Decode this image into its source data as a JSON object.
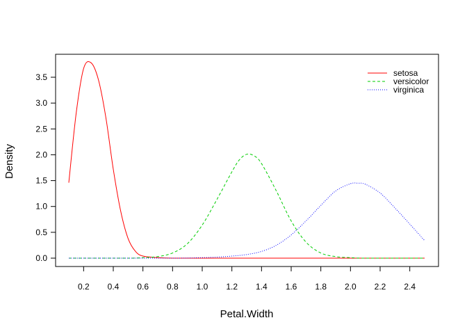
{
  "chart_data": {
    "type": "line",
    "title": "",
    "xlabel": "Petal.Width",
    "ylabel": "Density",
    "xlim": [
      0.1,
      2.5
    ],
    "ylim": [
      0,
      3.8
    ],
    "xticks": [
      "0.2",
      "0.4",
      "0.6",
      "0.8",
      "1.0",
      "1.2",
      "1.4",
      "1.6",
      "1.8",
      "2.0",
      "2.2",
      "2.4"
    ],
    "yticks": [
      "0.0",
      "0.5",
      "1.0",
      "1.5",
      "2.0",
      "2.5",
      "3.0",
      "3.5"
    ],
    "grid": false,
    "legend_position": "top-right",
    "series": [
      {
        "name": "setosa",
        "color": "#ff0000",
        "dash": "solid",
        "x": [
          0.1,
          0.15,
          0.2,
          0.25,
          0.3,
          0.35,
          0.4,
          0.45,
          0.5,
          0.55,
          0.6,
          0.7,
          0.8,
          1.0,
          1.5,
          2.0,
          2.5
        ],
        "y": [
          1.46,
          2.81,
          3.67,
          3.78,
          3.45,
          2.72,
          1.72,
          0.91,
          0.38,
          0.13,
          0.04,
          0.01,
          0.0,
          0.0,
          0.0,
          0.0,
          0.0
        ]
      },
      {
        "name": "versicolor",
        "color": "#00cd00",
        "dash": "dashed",
        "x": [
          0.1,
          0.5,
          0.6,
          0.7,
          0.8,
          0.9,
          1.0,
          1.1,
          1.2,
          1.25,
          1.3,
          1.35,
          1.4,
          1.5,
          1.6,
          1.7,
          1.8,
          1.9,
          2.0,
          2.1,
          2.5
        ],
        "y": [
          0.0,
          0.0,
          0.01,
          0.03,
          0.1,
          0.28,
          0.64,
          1.14,
          1.67,
          1.9,
          2.01,
          1.98,
          1.83,
          1.3,
          0.72,
          0.31,
          0.1,
          0.03,
          0.01,
          0.0,
          0.0
        ]
      },
      {
        "name": "virginica",
        "color": "#0000ff",
        "dash": "dotted",
        "x": [
          0.1,
          0.8,
          1.0,
          1.1,
          1.2,
          1.3,
          1.4,
          1.5,
          1.6,
          1.7,
          1.8,
          1.9,
          2.0,
          2.05,
          2.1,
          2.2,
          2.3,
          2.4,
          2.5
        ],
        "y": [
          0.0,
          0.0,
          0.01,
          0.02,
          0.04,
          0.07,
          0.13,
          0.25,
          0.45,
          0.72,
          1.02,
          1.3,
          1.44,
          1.45,
          1.43,
          1.26,
          0.97,
          0.66,
          0.34
        ]
      }
    ]
  }
}
